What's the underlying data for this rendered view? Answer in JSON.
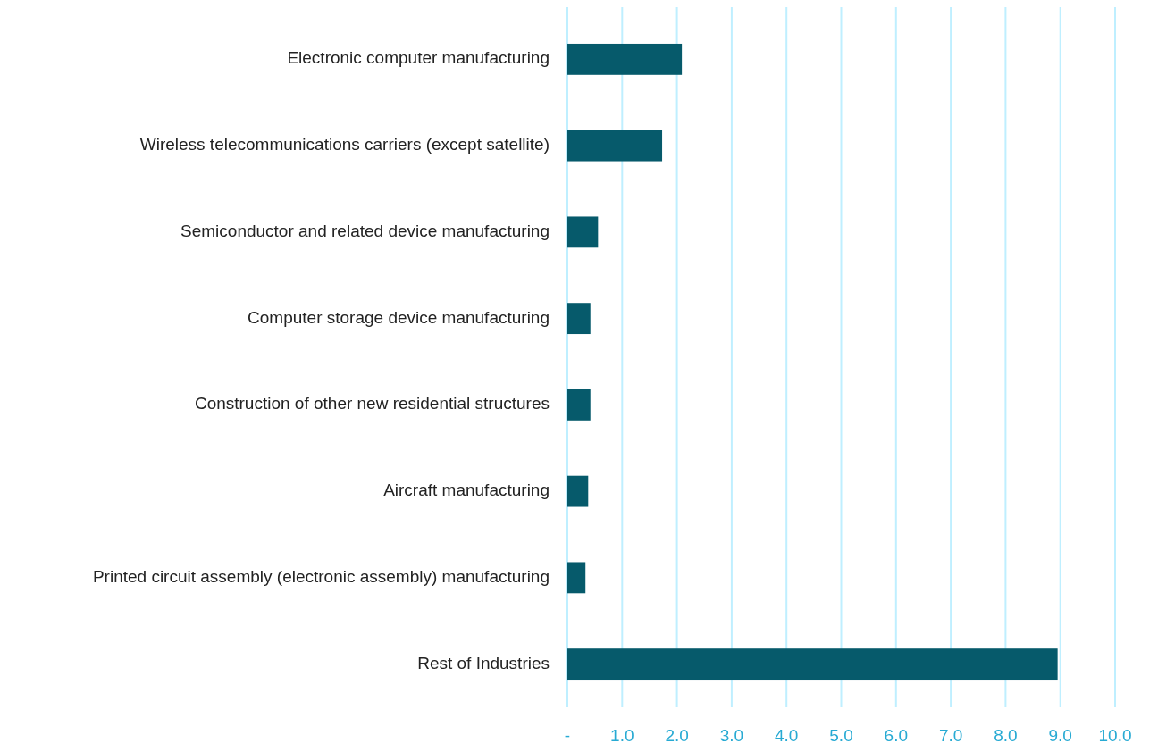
{
  "chart_data": {
    "type": "bar",
    "orientation": "horizontal",
    "categories": [
      "Electronic computer manufacturing",
      "Wireless telecommunications carriers (except satellite)",
      "Semiconductor and related device manufacturing",
      "Computer storage device manufacturing",
      "Construction of other new residential structures",
      "Aircraft manufacturing",
      "Printed circuit assembly (electronic assembly) manufacturing",
      "Rest of Industries"
    ],
    "values": [
      2.09,
      1.73,
      0.56,
      0.42,
      0.42,
      0.38,
      0.33,
      8.95
    ],
    "color": "#065a6b",
    "xlim": [
      0,
      10
    ],
    "xticks": [
      {
        "value": 0,
        "label": "-"
      },
      {
        "value": 1,
        "label": "1.0"
      },
      {
        "value": 2,
        "label": "2.0"
      },
      {
        "value": 3,
        "label": "3.0"
      },
      {
        "value": 4,
        "label": "4.0"
      },
      {
        "value": 5,
        "label": "5.0"
      },
      {
        "value": 6,
        "label": "6.0"
      },
      {
        "value": 7,
        "label": "7.0"
      },
      {
        "value": 8,
        "label": "8.0"
      },
      {
        "value": 9,
        "label": "9.0"
      },
      {
        "value": 10,
        "label": "10.0"
      }
    ],
    "grid": "x"
  }
}
